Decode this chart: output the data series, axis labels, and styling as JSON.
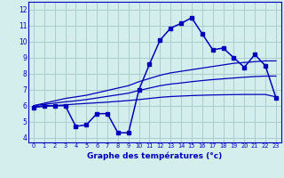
{
  "title": "Graphe des températures (°c)",
  "bg_color": "#d4eeee",
  "grid_color": "#aacccc",
  "line_color": "#0000bb",
  "xlim_min": -0.5,
  "xlim_max": 23.5,
  "ylim_min": 3.7,
  "ylim_max": 12.5,
  "yticks": [
    4,
    5,
    6,
    7,
    8,
    9,
    10,
    11,
    12
  ],
  "xticks": [
    0,
    1,
    2,
    3,
    4,
    5,
    6,
    7,
    8,
    9,
    10,
    11,
    12,
    13,
    14,
    15,
    16,
    17,
    18,
    19,
    20,
    21,
    22,
    23
  ],
  "hours": [
    0,
    1,
    2,
    3,
    4,
    5,
    6,
    7,
    8,
    9,
    10,
    11,
    12,
    13,
    14,
    15,
    16,
    17,
    18,
    19,
    20,
    21,
    22,
    23
  ],
  "temp_actual": [
    5.9,
    6.0,
    6.0,
    6.0,
    4.7,
    4.8,
    5.5,
    5.5,
    4.3,
    4.3,
    7.0,
    8.6,
    10.1,
    10.85,
    11.15,
    11.5,
    10.5,
    9.5,
    9.6,
    9.0,
    8.4,
    9.2,
    8.5,
    6.5
  ],
  "line_upper": [
    6.0,
    6.15,
    6.3,
    6.45,
    6.55,
    6.65,
    6.8,
    6.95,
    7.1,
    7.25,
    7.5,
    7.7,
    7.9,
    8.05,
    8.15,
    8.25,
    8.35,
    8.45,
    8.55,
    8.65,
    8.7,
    8.75,
    8.8,
    8.8
  ],
  "line_mid": [
    6.0,
    6.08,
    6.16,
    6.24,
    6.3,
    6.38,
    6.48,
    6.58,
    6.68,
    6.78,
    6.95,
    7.1,
    7.25,
    7.35,
    7.42,
    7.5,
    7.57,
    7.63,
    7.68,
    7.73,
    7.78,
    7.82,
    7.85,
    7.85
  ],
  "line_lower": [
    5.9,
    5.95,
    6.0,
    6.05,
    6.1,
    6.14,
    6.18,
    6.22,
    6.27,
    6.32,
    6.38,
    6.45,
    6.52,
    6.57,
    6.6,
    6.63,
    6.65,
    6.67,
    6.68,
    6.69,
    6.7,
    6.7,
    6.7,
    6.55
  ]
}
